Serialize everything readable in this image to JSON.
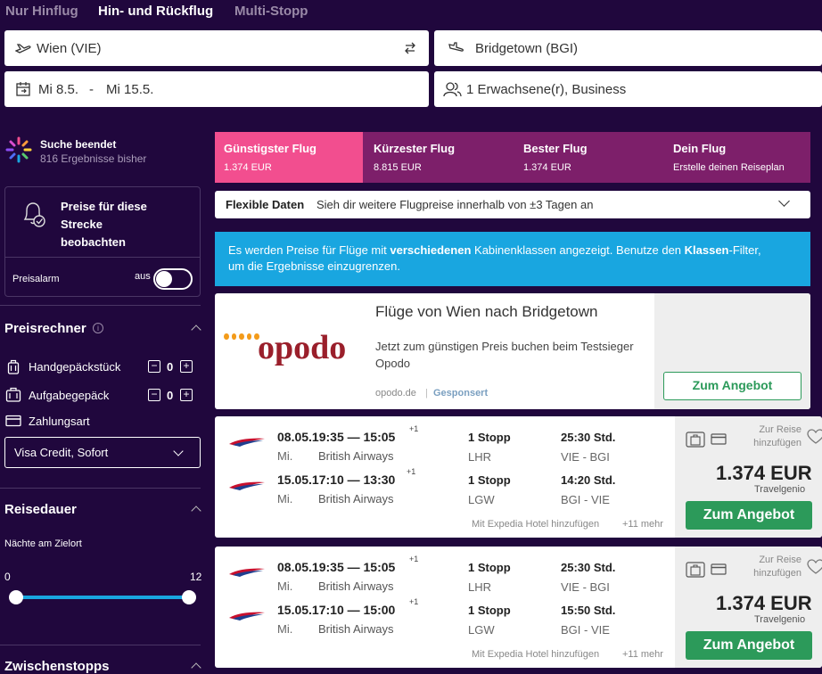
{
  "trip_tabs": [
    "Nur Hinflug",
    "Hin- und Rückflug",
    "Multi-Stopp"
  ],
  "search": {
    "origin": "Wien (VIE)",
    "destination": "Bridgetown (BGI)",
    "depart_date": "Mi 8.5.",
    "date_sep": "-",
    "return_date": "Mi 15.5.",
    "travelers": "1 Erwachsene(r), Business"
  },
  "status": {
    "title": "Suche beendet",
    "subtitle": "816 Ergebnisse bisher"
  },
  "price_watch": {
    "title": "Preise für diese Strecke beobachten",
    "alarm_label": "Preisalarm",
    "toggle_label": "aus"
  },
  "price_calc": {
    "title": "Preisrechner",
    "info_icon": "i",
    "hand_luggage": "Handgepäckstück",
    "hand_count": "0",
    "checked_luggage": "Aufgabegepäck",
    "checked_count": "0",
    "payment_label": "Zahlungsart",
    "payment_value": "Visa Credit, Sofort"
  },
  "duration": {
    "title": "Reisedauer",
    "nights_label": "Nächte am Zielort",
    "min": "0",
    "max": "12",
    "range_min": 0,
    "range_max": 12
  },
  "stops_title": "Zwischenstopps",
  "sort_tabs": [
    {
      "label": "Günstigster Flug",
      "value": "1.374 EUR"
    },
    {
      "label": "Kürzester Flug",
      "value": "8.815 EUR"
    },
    {
      "label": "Bester Flug",
      "value": "1.374 EUR"
    },
    {
      "label": "Dein Flug",
      "value": "Erstelle deinen Reiseplan"
    }
  ],
  "flex": {
    "title": "Flexible Daten",
    "text": "Sieh dir weitere Flugpreise innerhalb von ±3 Tagen an"
  },
  "notice": {
    "part1": "Es werden Preise für Flüge mit ",
    "bold1": "verschiedenen",
    "part2": " Kabinenklassen angezeigt. Benutze den ",
    "bold2": "Klassen",
    "part3": "-Filter, um die Ergebnisse einzugrenzen."
  },
  "ad": {
    "logo_text": "opodo",
    "title": "Flüge von Wien nach Bridgetown",
    "text": "Jetzt zum günstigen Preis buchen beim Testsieger Opodo",
    "source": "opodo.de",
    "sep": "|",
    "sponsored": "Gesponsert",
    "button": "Zum Angebot"
  },
  "results": [
    {
      "legs": [
        {
          "time": "08.05.19:35 — 15:05",
          "plus": "+1",
          "day": "Mi.",
          "airline": "British Airways",
          "stops": "1 Stopp",
          "via": "LHR",
          "duration": "25:30 Std.",
          "route": "VIE - BGI"
        },
        {
          "time": "15.05.17:10 — 13:30",
          "plus": "+1",
          "day": "Mi.",
          "airline": "British Airways",
          "stops": "1 Stopp",
          "via": "LGW",
          "duration": "14:20 Std.",
          "route": "BGI - VIE"
        }
      ],
      "footer": "Mit Expedia Hotel hinzufügen",
      "more": "+11 mehr",
      "add_trip": "Zur Reise hinzufügen",
      "price": "1.374 EUR",
      "provider": "Travelgenio",
      "button": "Zum Angebot"
    },
    {
      "legs": [
        {
          "time": "08.05.19:35 — 15:05",
          "plus": "+1",
          "day": "Mi.",
          "airline": "British Airways",
          "stops": "1 Stopp",
          "via": "LHR",
          "duration": "25:30 Std.",
          "route": "VIE - BGI"
        },
        {
          "time": "15.05.17:10 — 15:00",
          "plus": "+1",
          "day": "Mi.",
          "airline": "British Airways",
          "stops": "1 Stopp",
          "via": "LGW",
          "duration": "15:50 Std.",
          "route": "BGI - VIE"
        }
      ],
      "footer": "Mit Expedia Hotel hinzufügen",
      "more": "+11 mehr",
      "add_trip": "Zur Reise hinzufügen",
      "price": "1.374 EUR",
      "provider": "Travelgenio",
      "button": "Zum Angebot"
    }
  ],
  "colors": {
    "bg": "#20073d",
    "active_tab": "#f24e8f",
    "tab_bg": "#7d1f6a",
    "notice": "#19a6e0",
    "green": "#2c9a5a"
  }
}
